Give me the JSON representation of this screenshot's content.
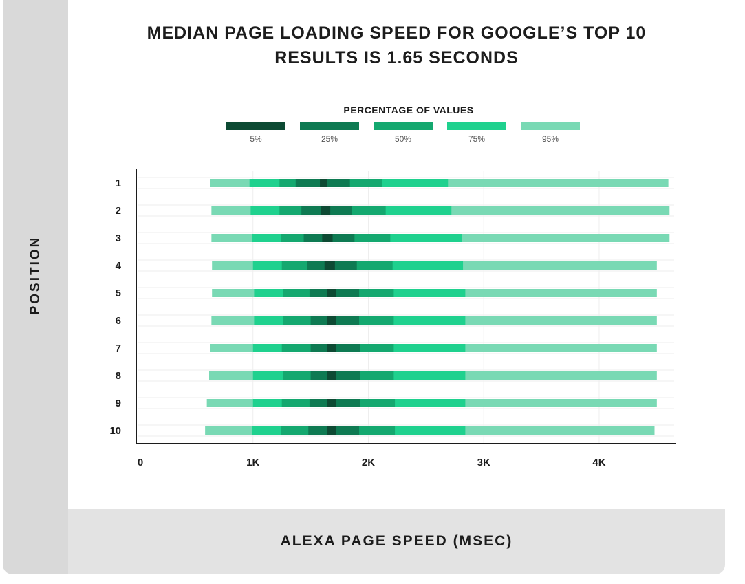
{
  "chart_data": {
    "type": "bar",
    "title": [
      "MEDIAN PAGE LOADING SPEED FOR GOOGLE’S TOP 10",
      "RESULTS IS 1.65 SECONDS"
    ],
    "xlabel": "ALEXA PAGE SPEED (MSEC)",
    "ylabel": "POSITION",
    "legend_title": "PERCENTAGE OF VALUES",
    "legend": [
      {
        "label": "5%",
        "color": "#0d4a33"
      },
      {
        "label": "25%",
        "color": "#0e7a52"
      },
      {
        "label": "50%",
        "color": "#14a86f"
      },
      {
        "label": "75%",
        "color": "#1fd18e"
      },
      {
        "label": "95%",
        "color": "#79d9b4"
      }
    ],
    "x_ticks": [
      0,
      1000,
      2000,
      3000,
      4000
    ],
    "x_tick_labels": [
      "0",
      "1K",
      "2K",
      "3K",
      "4K"
    ],
    "xlim": [
      0,
      4650
    ],
    "grid": true,
    "legend_position": "top",
    "categories": [
      "1",
      "2",
      "3",
      "4",
      "5",
      "6",
      "7",
      "8",
      "9",
      "10"
    ],
    "series": [
      {
        "name": "95%",
        "values": [
          [
            630,
            4600
          ],
          [
            640,
            4610
          ],
          [
            640,
            4610
          ],
          [
            645,
            4500
          ],
          [
            645,
            4500
          ],
          [
            640,
            4500
          ],
          [
            630,
            4500
          ],
          [
            620,
            4500
          ],
          [
            600,
            4500
          ],
          [
            585,
            4480
          ]
        ]
      },
      {
        "name": "75%",
        "values": [
          [
            970,
            2690
          ],
          [
            980,
            2720
          ],
          [
            990,
            2810
          ],
          [
            1000,
            2820
          ],
          [
            1010,
            2840
          ],
          [
            1010,
            2840
          ],
          [
            1000,
            2840
          ],
          [
            1000,
            2840
          ],
          [
            1000,
            2840
          ],
          [
            990,
            2840
          ]
        ]
      },
      {
        "name": "50%",
        "values": [
          [
            1230,
            2120
          ],
          [
            1230,
            2150
          ],
          [
            1240,
            2190
          ],
          [
            1250,
            2210
          ],
          [
            1260,
            2220
          ],
          [
            1260,
            2220
          ],
          [
            1250,
            2220
          ],
          [
            1260,
            2220
          ],
          [
            1250,
            2230
          ],
          [
            1240,
            2230
          ]
        ]
      },
      {
        "name": "25%",
        "values": [
          [
            1370,
            1840
          ],
          [
            1420,
            1860
          ],
          [
            1440,
            1880
          ],
          [
            1470,
            1900
          ],
          [
            1490,
            1920
          ],
          [
            1500,
            1920
          ],
          [
            1500,
            1930
          ],
          [
            1500,
            1930
          ],
          [
            1490,
            1930
          ],
          [
            1480,
            1920
          ]
        ]
      },
      {
        "name": "5%",
        "values": [
          [
            1580,
            1640
          ],
          [
            1590,
            1670
          ],
          [
            1600,
            1690
          ],
          [
            1620,
            1710
          ],
          [
            1640,
            1720
          ],
          [
            1640,
            1720
          ],
          [
            1640,
            1720
          ],
          [
            1640,
            1720
          ],
          [
            1640,
            1720
          ],
          [
            1640,
            1720
          ]
        ]
      }
    ]
  }
}
